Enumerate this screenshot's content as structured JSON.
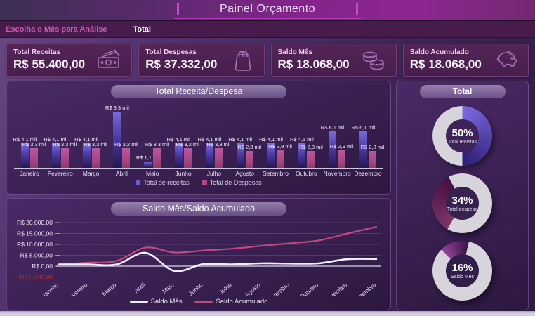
{
  "header": {
    "title": "Painel Orçamento"
  },
  "filter_bar": {
    "label": "Escolha o Mês para Análise",
    "selected": "Total"
  },
  "kpis": [
    {
      "label": "Total Receitas",
      "value": "R$ 55.400,00",
      "icon": "banknotes-icon"
    },
    {
      "label": "Total Despesas",
      "value": "R$ 37.332,00",
      "icon": "shopping-bag-icon"
    },
    {
      "label": "Saldo Mês",
      "value": "R$ 18.068,00",
      "icon": "coins-icon"
    },
    {
      "label": "Saldo Acumulado",
      "value": "R$ 18.068,00",
      "icon": "piggy-bank-icon"
    }
  ],
  "colors": {
    "receitas_bar": "#6a5ccc",
    "despesas_bar": "#b0498c",
    "saldo_mes_line": "#f3eefc",
    "saldo_acumulado_line": "#c2497f",
    "negative_tick": "#b33030",
    "donut_rest": "#d8d4dc"
  },
  "chart_data": [
    {
      "type": "bar",
      "title": "Total Receita/Despesa",
      "categories": [
        "Janeiro",
        "Fevereiro",
        "Março",
        "Abril",
        "Maio",
        "Junho",
        "Julho",
        "Agosto",
        "Setembro",
        "Outubro",
        "Novembro",
        "Dezembro"
      ],
      "ylim": [
        0,
        9300
      ],
      "grid": false,
      "legend_position": "bottom",
      "series": [
        {
          "name": "Total de receitas",
          "values": [
            4100,
            4100,
            4100,
            9300,
            1100,
            4100,
            4100,
            4100,
            4100,
            4100,
            6100,
            6100
          ],
          "labels": [
            "R$ 4,1 mil",
            "R$ 4,1 mil",
            "R$ 4,1 mil",
            "R$ 9,3 mil",
            "R$ 1,1 mil",
            "R$ 4,1 mil",
            "R$ 4,1 mil",
            "R$ 4,1 mil",
            "R$ 4,1 mil",
            "R$ 4,1 mil",
            "R$ 6,1 mil",
            "R$ 6,1 mil"
          ],
          "color": "#6a5ccc"
        },
        {
          "name": "Total de Despesas",
          "values": [
            3300,
            3300,
            3300,
            3200,
            3300,
            3200,
            3300,
            2800,
            2900,
            2800,
            2900,
            2800
          ],
          "labels": [
            "R$ 3,3 mil",
            "R$ 3,3 mil",
            "R$ 3,3 mil",
            "R$ 3,2 mil",
            "R$ 3,3 mil",
            "R$ 3,2 mil",
            "R$ 3,3 mil",
            "R$ 2,8 mil",
            "R$ 2,9 mil",
            "R$ 2,8 mil",
            "R$ 2,9 mil",
            "R$ 2,8 mil"
          ],
          "color": "#b0498c"
        }
      ]
    },
    {
      "type": "line",
      "title": "Saldo Mês/Saldo Acumulado",
      "x": [
        "Janeiro",
        "Fevereiro",
        "Março",
        "Abril",
        "Maio",
        "Junho",
        "Julho",
        "Agosto",
        "Setembro",
        "Outubro",
        "Novembro",
        "Dezembro"
      ],
      "ylim": [
        -5000,
        20000
      ],
      "grid": true,
      "legend_position": "bottom",
      "y_ticks": [
        {
          "label": "R$ 20.000,00",
          "value": 20000
        },
        {
          "label": "R$ 15.000,00",
          "value": 15000
        },
        {
          "label": "R$ 10.000,00",
          "value": 10000
        },
        {
          "label": "R$ 5.000,00",
          "value": 5000
        },
        {
          "label": "R$ 0,00",
          "value": 0
        },
        {
          "label": "-R$ 5.000,00",
          "value": -5000
        }
      ],
      "series": [
        {
          "name": "Saldo Mês",
          "values": [
            800,
            800,
            800,
            6100,
            -2200,
            900,
            800,
            1300,
            1200,
            1300,
            3200,
            3300
          ],
          "color": "#f3eefc"
        },
        {
          "name": "Saldo Acumulado",
          "values": [
            800,
            1600,
            2400,
            8500,
            6300,
            7200,
            8000,
            9300,
            10500,
            11800,
            15000,
            18068
          ],
          "color": "#c2497f"
        }
      ]
    },
    {
      "type": "pie",
      "title": "Total",
      "donuts": [
        {
          "pct": "50%",
          "value": 50,
          "label": "Total receitas",
          "start_deg": 0,
          "color_start": "#7b6ae0",
          "color_end": "#2c1d74"
        },
        {
          "pct": "34%",
          "value": 34,
          "label": "Total despesa",
          "start_deg": 210,
          "color_start": "#7e3566",
          "color_end": "#451040"
        },
        {
          "pct": "16%",
          "value": 16,
          "label": "Saldo Mês",
          "start_deg": 315,
          "color_start": "#92449a",
          "color_end": "#3d1547"
        }
      ]
    }
  ],
  "right_panel": {
    "title": "Total"
  }
}
